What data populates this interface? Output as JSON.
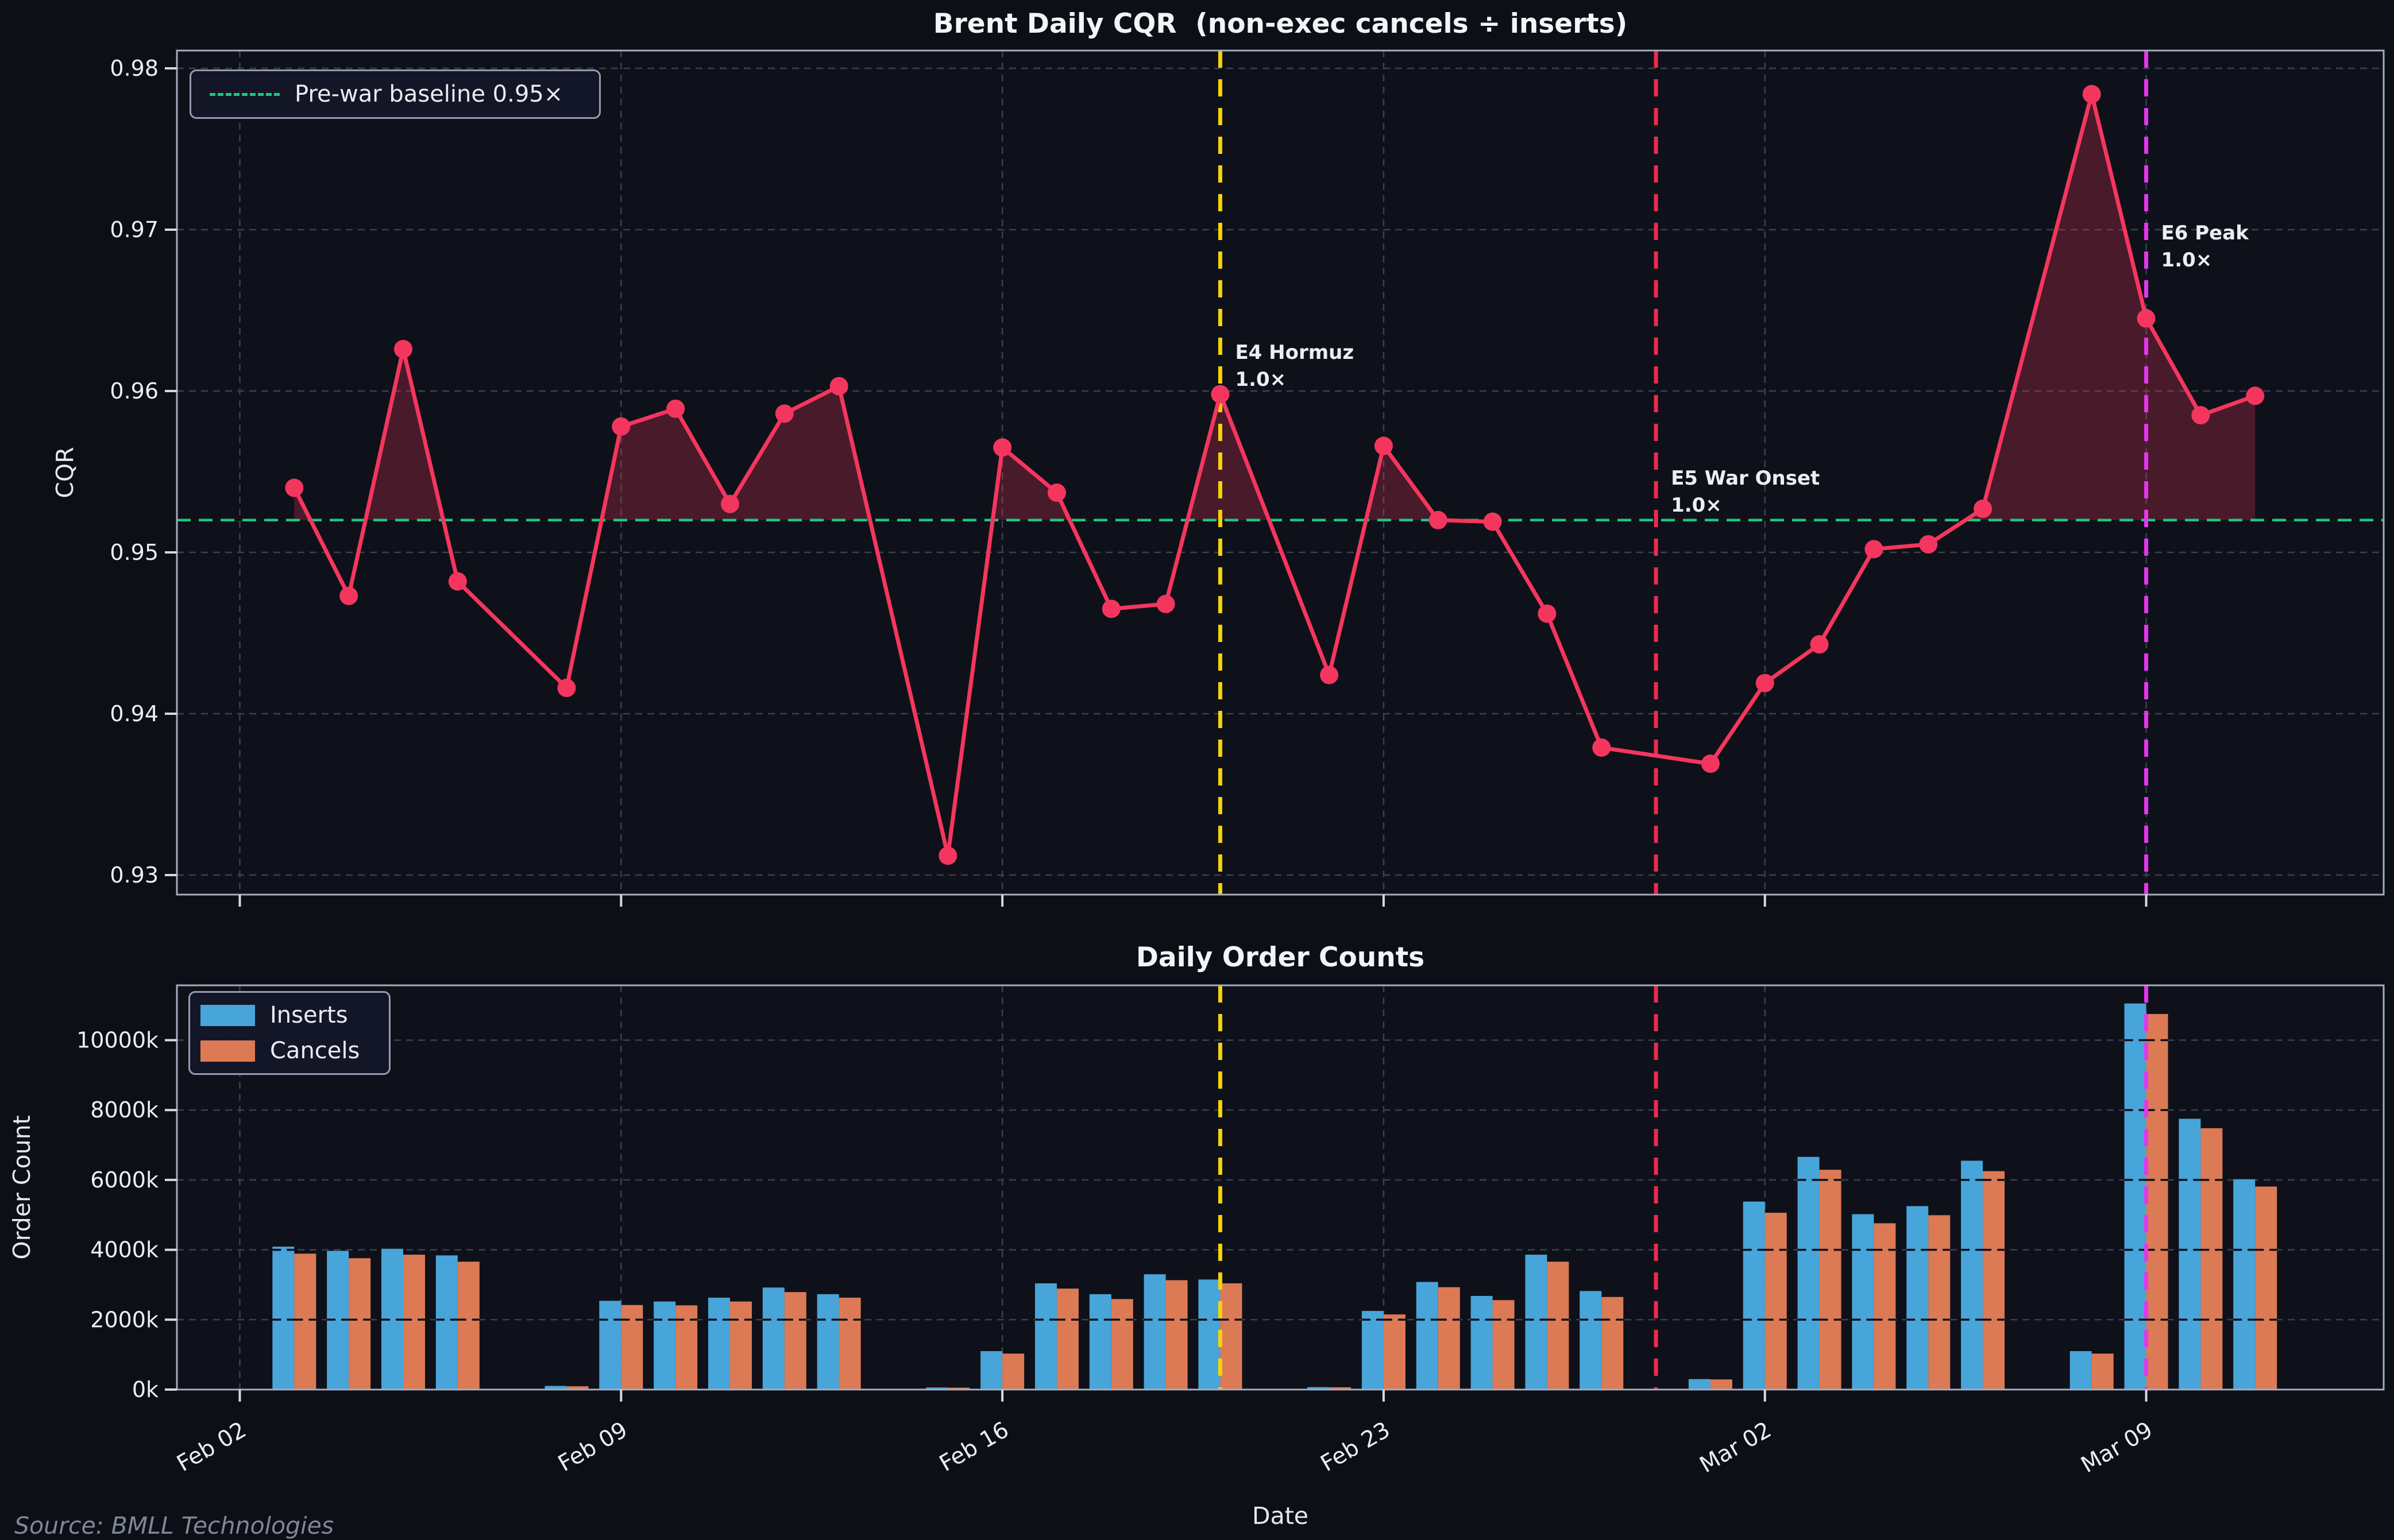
{
  "source": "Source: BMLL Technologies",
  "colors": {
    "figure_bg": "#0c0f15",
    "axes_bg": "#0e1119",
    "grid": "#3a4053",
    "spine": "#a5abbe",
    "tick": "#d5d9e4",
    "text": "#eceef4",
    "cqr_line": "#f4365e",
    "baseline_green": "#1cc87f",
    "event_yellow": "#f7d208",
    "event_crimson": "#ee2a52",
    "event_magenta": "#e435ef",
    "inserts_blue": "#47a5da",
    "cancels_orange": "#dc7a55"
  },
  "chart_data": [
    {
      "type": "line",
      "title": "Brent Daily CQR  (non-exec cancels ÷ inserts)",
      "ylabel": "CQR",
      "yticks": [
        0.93,
        0.94,
        0.95,
        0.96,
        0.97,
        0.98
      ],
      "ylim": [
        0.9288,
        0.9811
      ],
      "grid": true,
      "legend_position": "upper left",
      "baseline": {
        "value": 0.952,
        "legend_label": "Pre-war baseline 0.95×",
        "color": "#1cc87f"
      },
      "line_color": "#f4365e",
      "fill_color": "rgba(244,54,94,0.26)",
      "x_ticks": {
        "labels": [
          "Feb 02",
          "Feb 09",
          "Feb 16",
          "Feb 23",
          "Mar 02",
          "Mar 09"
        ],
        "days": [
          0,
          7,
          14,
          21,
          28,
          35
        ]
      },
      "x": [
        "Feb 03",
        "Feb 04",
        "Feb 05",
        "Feb 06",
        "Feb 08",
        "Feb 09",
        "Feb 10",
        "Feb 11",
        "Feb 12",
        "Feb 13",
        "Feb 15",
        "Feb 16",
        "Feb 17",
        "Feb 18",
        "Feb 19",
        "Feb 20",
        "Feb 22",
        "Feb 23",
        "Feb 24",
        "Feb 25",
        "Feb 26",
        "Feb 27",
        "Mar 01",
        "Mar 02",
        "Mar 03",
        "Mar 04",
        "Mar 05",
        "Mar 06",
        "Mar 08",
        "Mar 09",
        "Mar 10",
        "Mar 11"
      ],
      "days": [
        1,
        2,
        3,
        4,
        6,
        7,
        8,
        9,
        10,
        11,
        13,
        14,
        15,
        16,
        17,
        18,
        20,
        21,
        22,
        23,
        24,
        25,
        27,
        28,
        29,
        30,
        31,
        32,
        34,
        35,
        36,
        37
      ],
      "values": [
        0.954,
        0.9473,
        0.9626,
        0.9482,
        0.9416,
        0.9578,
        0.9589,
        0.953,
        0.9586,
        0.9603,
        0.9312,
        0.9565,
        0.9537,
        0.9465,
        0.9468,
        0.9598,
        0.9424,
        0.9566,
        0.952,
        0.9519,
        0.9462,
        0.9379,
        0.9369,
        0.9419,
        0.9443,
        0.9502,
        0.9505,
        0.9527,
        0.9784,
        0.9645,
        0.9585,
        0.9597
      ],
      "events": [
        {
          "id": "E4",
          "name": "E4 Hormuz",
          "multiplier": "1.0×",
          "date": "Feb 20",
          "day": 18,
          "color": "#f7d208",
          "label_v": 0.962
        },
        {
          "id": "E5",
          "name": "E5 War Onset",
          "multiplier": "1.0×",
          "date": "Feb 28",
          "day": 26,
          "color": "#ee2a52",
          "label_v": 0.9542
        },
        {
          "id": "E6",
          "name": "E6 Peak",
          "multiplier": "1.0×",
          "date": "Mar 09",
          "day": 35,
          "color": "#e435ef",
          "label_v": 0.9694
        }
      ]
    },
    {
      "type": "bar",
      "title": "Daily Order Counts",
      "xlabel": "Date",
      "ylabel": "Order Count",
      "ytick_labels": [
        "0k",
        "2000k",
        "4000k",
        "6000k",
        "8000k",
        "10000k"
      ],
      "yticks_k": [
        0,
        2000,
        4000,
        6000,
        8000,
        10000
      ],
      "ylim_k": [
        0,
        11570
      ],
      "grid": true,
      "legend_position": "upper left",
      "x_ticks": {
        "labels": [
          "Feb 02",
          "Feb 09",
          "Feb 16",
          "Feb 23",
          "Mar 02",
          "Mar 09"
        ],
        "days": [
          0,
          7,
          14,
          21,
          28,
          35
        ]
      },
      "categories": [
        "Feb 03",
        "Feb 04",
        "Feb 05",
        "Feb 06",
        "Feb 08",
        "Feb 09",
        "Feb 10",
        "Feb 11",
        "Feb 12",
        "Feb 13",
        "Feb 15",
        "Feb 16",
        "Feb 17",
        "Feb 18",
        "Feb 19",
        "Feb 20",
        "Feb 22",
        "Feb 23",
        "Feb 24",
        "Feb 25",
        "Feb 26",
        "Feb 27",
        "Mar 01",
        "Mar 02",
        "Mar 03",
        "Mar 04",
        "Mar 05",
        "Mar 06",
        "Mar 08",
        "Mar 09",
        "Mar 10",
        "Mar 11"
      ],
      "days": [
        1,
        2,
        3,
        4,
        6,
        7,
        8,
        9,
        10,
        11,
        13,
        14,
        15,
        16,
        17,
        18,
        20,
        21,
        22,
        23,
        24,
        25,
        27,
        28,
        29,
        30,
        31,
        32,
        34,
        35,
        36,
        37
      ],
      "series": [
        {
          "name": "Inserts",
          "color": "#47a5da",
          "values_k": [
            4090,
            3970,
            4030,
            3840,
            105,
            2540,
            2520,
            2630,
            2920,
            2730,
            60,
            1100,
            3040,
            2730,
            3300,
            3150,
            70,
            2250,
            3080,
            2680,
            3860,
            2820,
            300,
            5380,
            6660,
            5020,
            5250,
            6550,
            1100,
            11050,
            7750,
            6020
          ]
        },
        {
          "name": "Cancels",
          "color": "#dc7a55",
          "values_k": [
            3890,
            3760,
            3860,
            3660,
            95,
            2420,
            2410,
            2520,
            2790,
            2630,
            55,
            1030,
            2890,
            2590,
            3130,
            3040,
            65,
            2150,
            2930,
            2560,
            3660,
            2650,
            290,
            5060,
            6290,
            4760,
            4990,
            6250,
            1030,
            10750,
            7480,
            5810
          ]
        }
      ]
    }
  ]
}
